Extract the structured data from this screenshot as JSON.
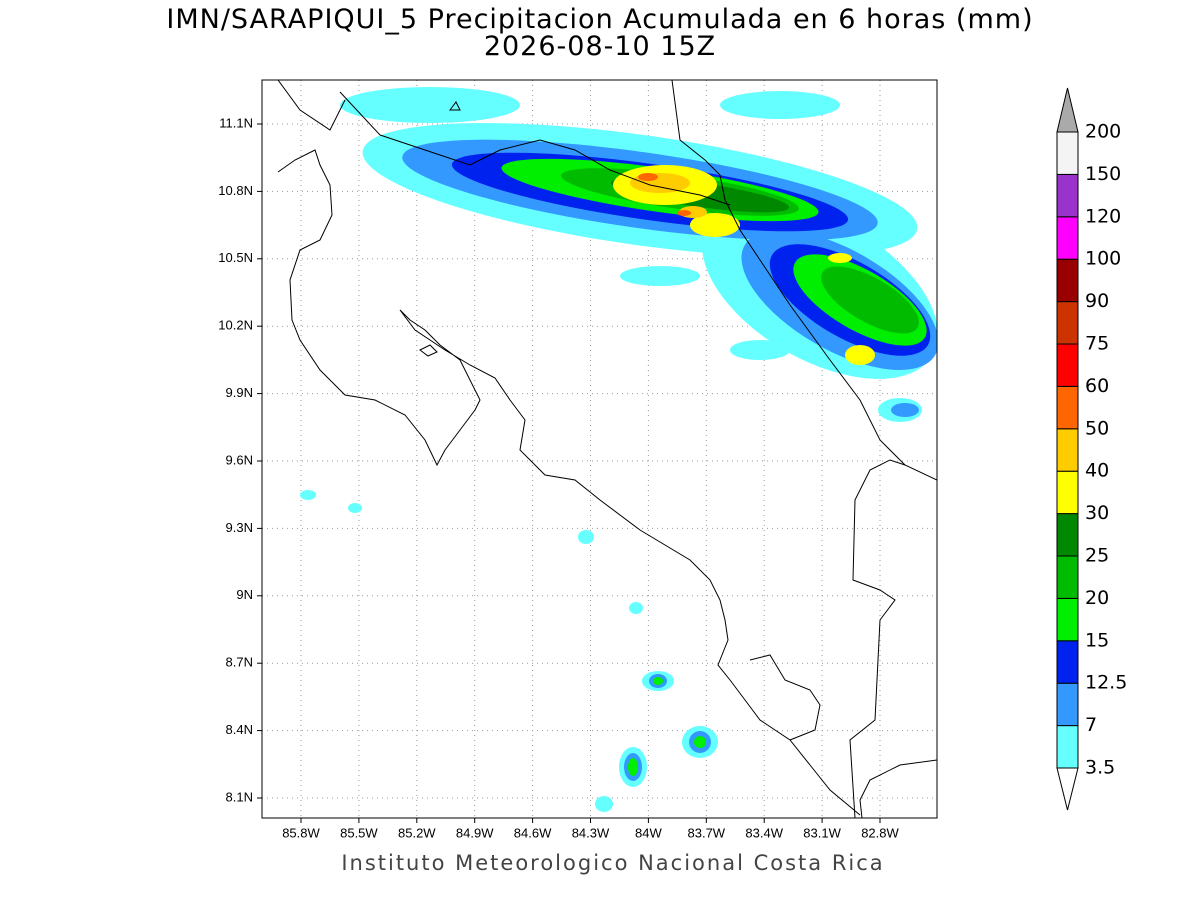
{
  "header": {
    "title": "IMN/SARAPIQUI_5 Precipitacion Acumulada en 6 horas (mm)",
    "subtitle": "2026-08-10 15Z"
  },
  "map": {
    "lat_ticks": [
      "11.1N",
      "10.8N",
      "10.5N",
      "10.2N",
      "9.9N",
      "9.6N",
      "9.3N",
      "9N",
      "8.7N",
      "8.4N",
      "8.1N"
    ],
    "lon_ticks": [
      "85.8W",
      "85.5W",
      "85.2W",
      "84.9W",
      "84.6W",
      "84.3W",
      "84W",
      "83.7W",
      "83.4W",
      "83.1W",
      "82.8W"
    ]
  },
  "colorbar": {
    "labels": [
      3.5,
      7,
      12.5,
      15,
      20,
      25,
      30,
      40,
      50,
      60,
      75,
      90,
      100,
      120,
      150,
      200
    ],
    "colors": [
      "#66ffff",
      "#3399ff",
      "#0022ee",
      "#00ee00",
      "#00bb00",
      "#008800",
      "#ffff00",
      "#ffcc00",
      "#ff6600",
      "#ff0000",
      "#cc3300",
      "#990000",
      "#ff00ff",
      "#9933cc",
      "#f4f4f4"
    ],
    "under_color": "#ffffff",
    "over_color": "#aaaaaa"
  },
  "footer": "Instituto Meteorologico Nacional Costa Rica"
}
